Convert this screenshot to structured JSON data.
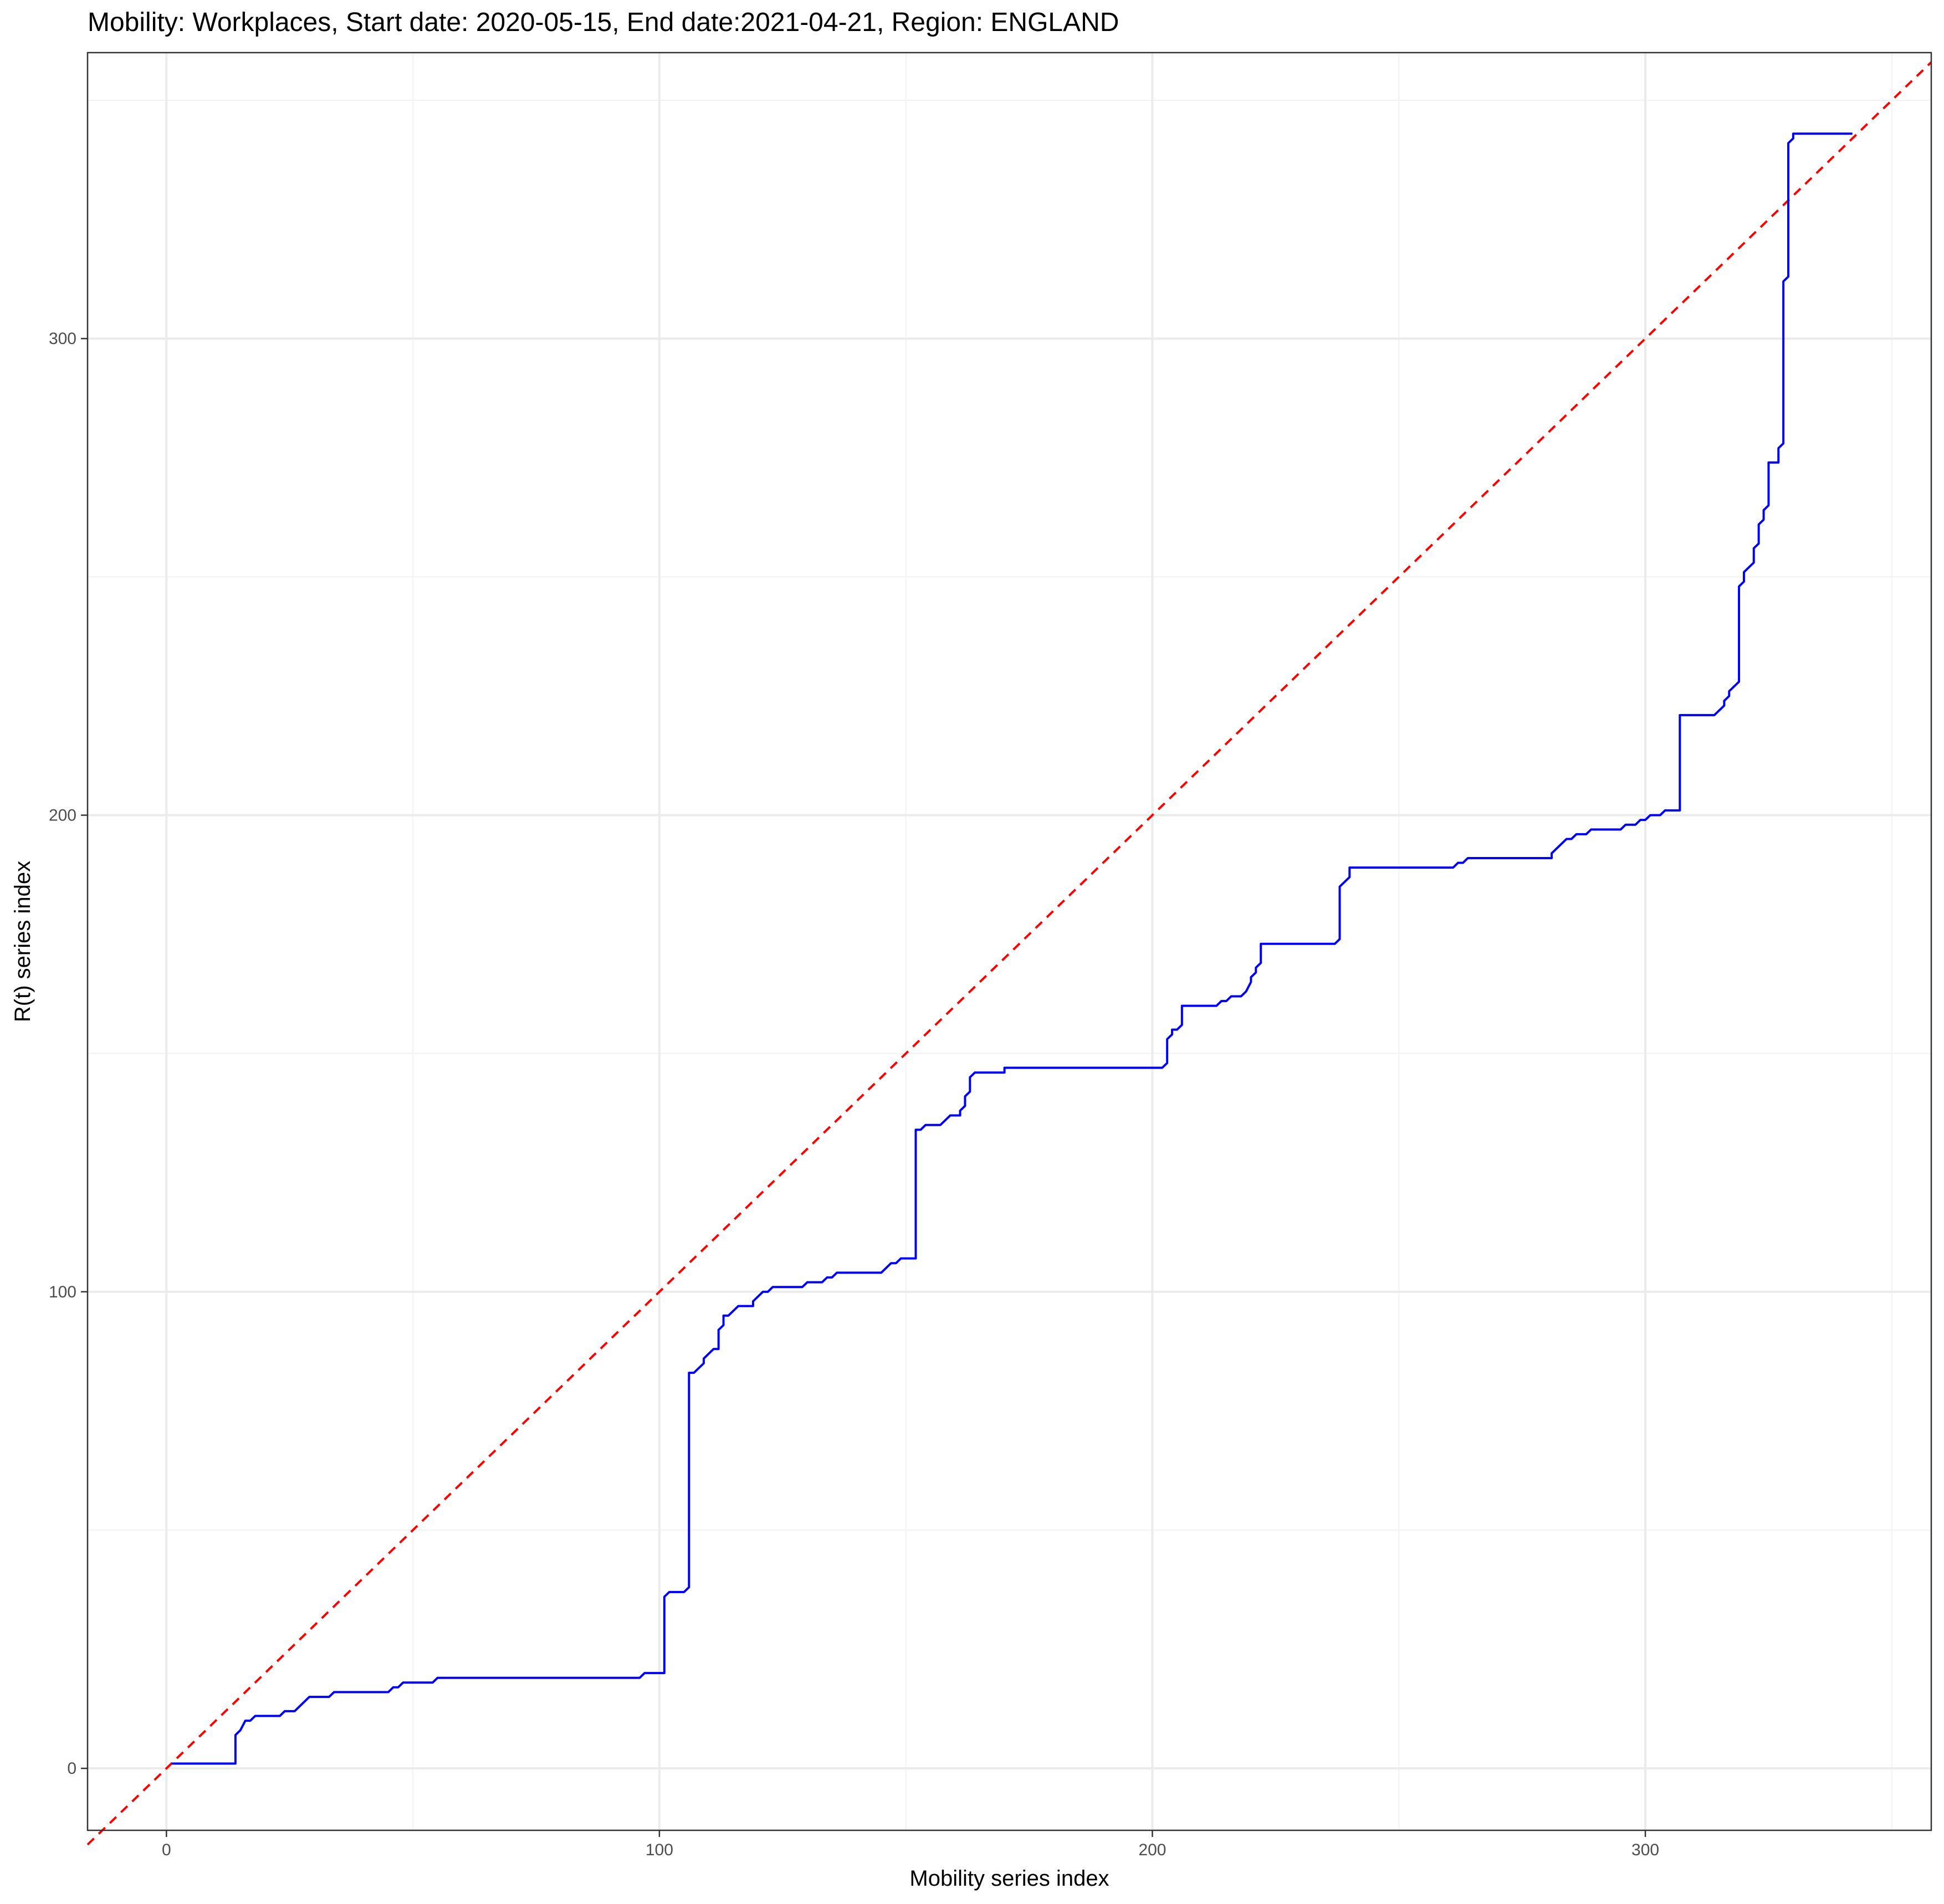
{
  "chart_data": {
    "type": "line",
    "title": "Mobility: Workplaces, Start date: 2020-05-15, End date:2021-04-21, Region: ENGLAND",
    "xlabel": "Mobility series index",
    "ylabel": "R(t) series index",
    "xlim": [
      -16,
      358
    ],
    "ylim": [
      -13,
      360
    ],
    "x_ticks": [
      0,
      100,
      200,
      300
    ],
    "y_ticks": [
      0,
      100,
      200,
      300
    ],
    "grid": true,
    "legend": "none",
    "series": [
      {
        "style": "solid",
        "color": "#0000ff",
        "points": [
          [
            1,
            1
          ],
          [
            14,
            1
          ],
          [
            14,
            7
          ],
          [
            15,
            8
          ],
          [
            16,
            10
          ],
          [
            17,
            10
          ],
          [
            18,
            11
          ],
          [
            23,
            11
          ],
          [
            24,
            12
          ],
          [
            26,
            12
          ],
          [
            29,
            15
          ],
          [
            33,
            15
          ],
          [
            34,
            16
          ],
          [
            45,
            16
          ],
          [
            46,
            17
          ],
          [
            47,
            17
          ],
          [
            48,
            18
          ],
          [
            54,
            18
          ],
          [
            55,
            19
          ],
          [
            96,
            19
          ],
          [
            97,
            20
          ],
          [
            101,
            20
          ],
          [
            101,
            36
          ],
          [
            102,
            37
          ],
          [
            105,
            37
          ],
          [
            106,
            38
          ],
          [
            106,
            83
          ],
          [
            107,
            83
          ],
          [
            109,
            85
          ],
          [
            109,
            86
          ],
          [
            110,
            87
          ],
          [
            111,
            88
          ],
          [
            112,
            88
          ],
          [
            112,
            92
          ],
          [
            113,
            93
          ],
          [
            113,
            95
          ],
          [
            114,
            95
          ],
          [
            116,
            97
          ],
          [
            119,
            97
          ],
          [
            119,
            98
          ],
          [
            121,
            100
          ],
          [
            122,
            100
          ],
          [
            123,
            101
          ],
          [
            129,
            101
          ],
          [
            130,
            102
          ],
          [
            133,
            102
          ],
          [
            134,
            103
          ],
          [
            135,
            103
          ],
          [
            136,
            104
          ],
          [
            145,
            104
          ],
          [
            147,
            106
          ],
          [
            148,
            106
          ],
          [
            149,
            107
          ],
          [
            152,
            107
          ],
          [
            152,
            134
          ],
          [
            153,
            134
          ],
          [
            154,
            135
          ],
          [
            157,
            135
          ],
          [
            159,
            137
          ],
          [
            161,
            137
          ],
          [
            161,
            138
          ],
          [
            162,
            139
          ],
          [
            162,
            141
          ],
          [
            163,
            142
          ],
          [
            163,
            145
          ],
          [
            164,
            146
          ],
          [
            170,
            146
          ],
          [
            170,
            147
          ],
          [
            202,
            147
          ],
          [
            203,
            148
          ],
          [
            203,
            153
          ],
          [
            204,
            154
          ],
          [
            204,
            155
          ],
          [
            205,
            155
          ],
          [
            206,
            156
          ],
          [
            206,
            160
          ],
          [
            213,
            160
          ],
          [
            214,
            161
          ],
          [
            215,
            161
          ],
          [
            216,
            162
          ],
          [
            218,
            162
          ],
          [
            219,
            163
          ],
          [
            220,
            165
          ],
          [
            220,
            166
          ],
          [
            221,
            167
          ],
          [
            221,
            168
          ],
          [
            222,
            169
          ],
          [
            222,
            173
          ],
          [
            237,
            173
          ],
          [
            238,
            174
          ],
          [
            238,
            185
          ],
          [
            239,
            186
          ],
          [
            240,
            187
          ],
          [
            240,
            189
          ],
          [
            261,
            189
          ],
          [
            262,
            190
          ],
          [
            263,
            190
          ],
          [
            264,
            191
          ],
          [
            281,
            191
          ],
          [
            281,
            192
          ],
          [
            283,
            194
          ],
          [
            284,
            195
          ],
          [
            285,
            195
          ],
          [
            286,
            196
          ],
          [
            288,
            196
          ],
          [
            289,
            197
          ],
          [
            295,
            197
          ],
          [
            296,
            198
          ],
          [
            298,
            198
          ],
          [
            299,
            199
          ],
          [
            300,
            199
          ],
          [
            301,
            200
          ],
          [
            303,
            200
          ],
          [
            304,
            201
          ],
          [
            307,
            201
          ],
          [
            307,
            221
          ],
          [
            314,
            221
          ],
          [
            316,
            223
          ],
          [
            316,
            224
          ],
          [
            317,
            225
          ],
          [
            317,
            226
          ],
          [
            319,
            228
          ],
          [
            319,
            248
          ],
          [
            320,
            249
          ],
          [
            320,
            251
          ],
          [
            322,
            253
          ],
          [
            322,
            256
          ],
          [
            323,
            257
          ],
          [
            323,
            261
          ],
          [
            324,
            262
          ],
          [
            324,
            264
          ],
          [
            325,
            265
          ],
          [
            325,
            274
          ],
          [
            327,
            274
          ],
          [
            327,
            277
          ],
          [
            328,
            278
          ],
          [
            328,
            312
          ],
          [
            329,
            313
          ],
          [
            329,
            341
          ],
          [
            330,
            342
          ],
          [
            330,
            343
          ],
          [
            342,
            343
          ]
        ]
      },
      {
        "style": "dashed",
        "color": "#ff0000",
        "points": [
          [
            -16,
            -16
          ],
          [
            358,
            358
          ]
        ]
      }
    ]
  }
}
